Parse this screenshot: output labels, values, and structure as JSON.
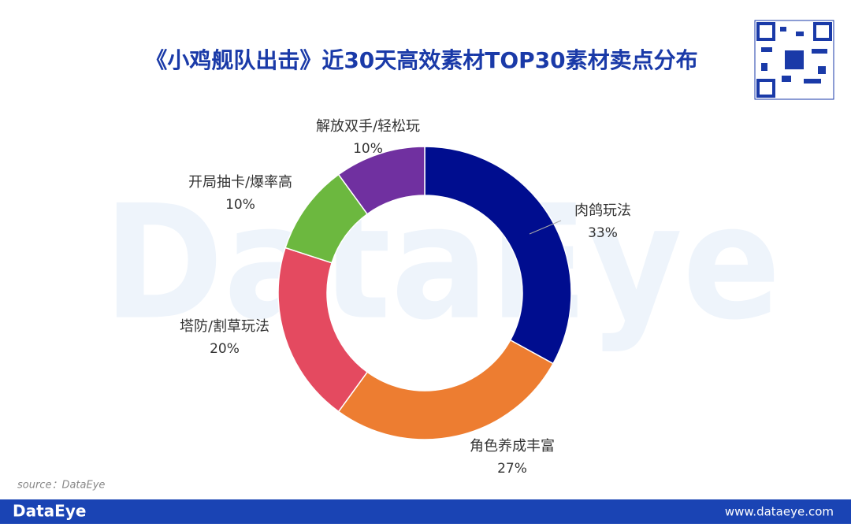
{
  "chart_data": {
    "type": "pie",
    "title": "《小鸡舰队出击》近30天高效素材TOP30素材卖点分布",
    "categories": [
      "肉鸽玩法",
      "角色养成丰富",
      "塔防/割草玩法",
      "开局抽卡/爆率高",
      "解放双手/轻松玩"
    ],
    "values": [
      33,
      27,
      20,
      10,
      10
    ],
    "value_labels": [
      "33%",
      "27%",
      "20%",
      "10%",
      "10%"
    ],
    "colors": [
      "#000d8f",
      "#ed7d31",
      "#e44a60",
      "#6cb83f",
      "#7030a0"
    ],
    "donut": true,
    "source": "source：DataEye",
    "watermark": "DataEye",
    "footer_brand": "DataEye",
    "footer_url": "www.dataeye.com"
  }
}
